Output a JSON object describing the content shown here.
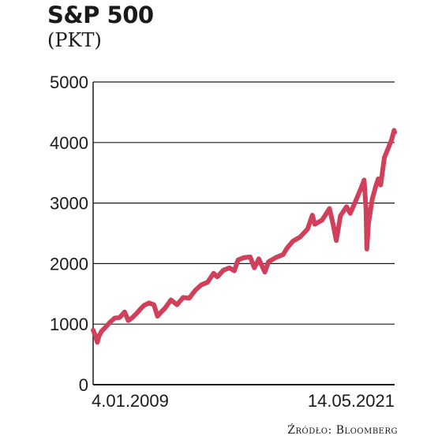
{
  "header": {
    "title": "S&P 500",
    "subtitle": "(PKT)"
  },
  "footer": {
    "source": "Źródło: Bloomberg"
  },
  "colors": {
    "line": "#d0405a",
    "grid": "#1a1a1a",
    "text": "#1a1a1a"
  },
  "chart_data": {
    "type": "line",
    "title": "S&P 500",
    "ylabel": "",
    "xlabel": "",
    "ylim": [
      0,
      5000
    ],
    "yticks": [
      "0",
      "1000",
      "2000",
      "3000",
      "4000",
      "5000"
    ],
    "y_tick_values": [
      0,
      1000,
      2000,
      3000,
      4000,
      5000
    ],
    "x_tick_labels": [
      "4.01.2009",
      "14.05.2021"
    ],
    "grid": "horizontal",
    "series": [
      {
        "values": [
          [
            2009.01,
            900
          ],
          [
            2009.09,
            820
          ],
          [
            2009.18,
            700
          ],
          [
            2009.25,
            800
          ],
          [
            2009.35,
            880
          ],
          [
            2009.5,
            940
          ],
          [
            2009.7,
            1030
          ],
          [
            2009.9,
            1100
          ],
          [
            2010.1,
            1110
          ],
          [
            2010.3,
            1200
          ],
          [
            2010.45,
            1060
          ],
          [
            2010.6,
            1100
          ],
          [
            2010.8,
            1180
          ],
          [
            2010.95,
            1250
          ],
          [
            2011.1,
            1310
          ],
          [
            2011.3,
            1350
          ],
          [
            2011.5,
            1320
          ],
          [
            2011.65,
            1130
          ],
          [
            2011.8,
            1200
          ],
          [
            2011.95,
            1260
          ],
          [
            2012.2,
            1400
          ],
          [
            2012.45,
            1320
          ],
          [
            2012.7,
            1440
          ],
          [
            2012.95,
            1430
          ],
          [
            2013.2,
            1560
          ],
          [
            2013.45,
            1650
          ],
          [
            2013.7,
            1690
          ],
          [
            2013.95,
            1840
          ],
          [
            2014.1,
            1780
          ],
          [
            2014.35,
            1890
          ],
          [
            2014.6,
            1930
          ],
          [
            2014.8,
            1880
          ],
          [
            2014.95,
            2060
          ],
          [
            2015.2,
            2100
          ],
          [
            2015.45,
            2110
          ],
          [
            2015.62,
            1930
          ],
          [
            2015.8,
            2080
          ],
          [
            2016.05,
            1860
          ],
          [
            2016.2,
            2030
          ],
          [
            2016.5,
            2100
          ],
          [
            2016.8,
            2150
          ],
          [
            2016.95,
            2250
          ],
          [
            2017.2,
            2370
          ],
          [
            2017.5,
            2440
          ],
          [
            2017.8,
            2570
          ],
          [
            2018.0,
            2800
          ],
          [
            2018.1,
            2650
          ],
          [
            2018.4,
            2720
          ],
          [
            2018.7,
            2910
          ],
          [
            2018.85,
            2650
          ],
          [
            2018.98,
            2380
          ],
          [
            2019.15,
            2790
          ],
          [
            2019.4,
            2940
          ],
          [
            2019.55,
            2830
          ],
          [
            2019.75,
            3010
          ],
          [
            2019.98,
            3230
          ],
          [
            2020.12,
            3380
          ],
          [
            2020.2,
            2900
          ],
          [
            2020.23,
            2240
          ],
          [
            2020.3,
            2660
          ],
          [
            2020.45,
            3060
          ],
          [
            2020.6,
            3280
          ],
          [
            2020.7,
            3400
          ],
          [
            2020.8,
            3300
          ],
          [
            2020.95,
            3750
          ],
          [
            2021.1,
            3900
          ],
          [
            2021.25,
            4050
          ],
          [
            2021.35,
            4200
          ],
          [
            2021.37,
            4170
          ]
        ]
      }
    ]
  }
}
